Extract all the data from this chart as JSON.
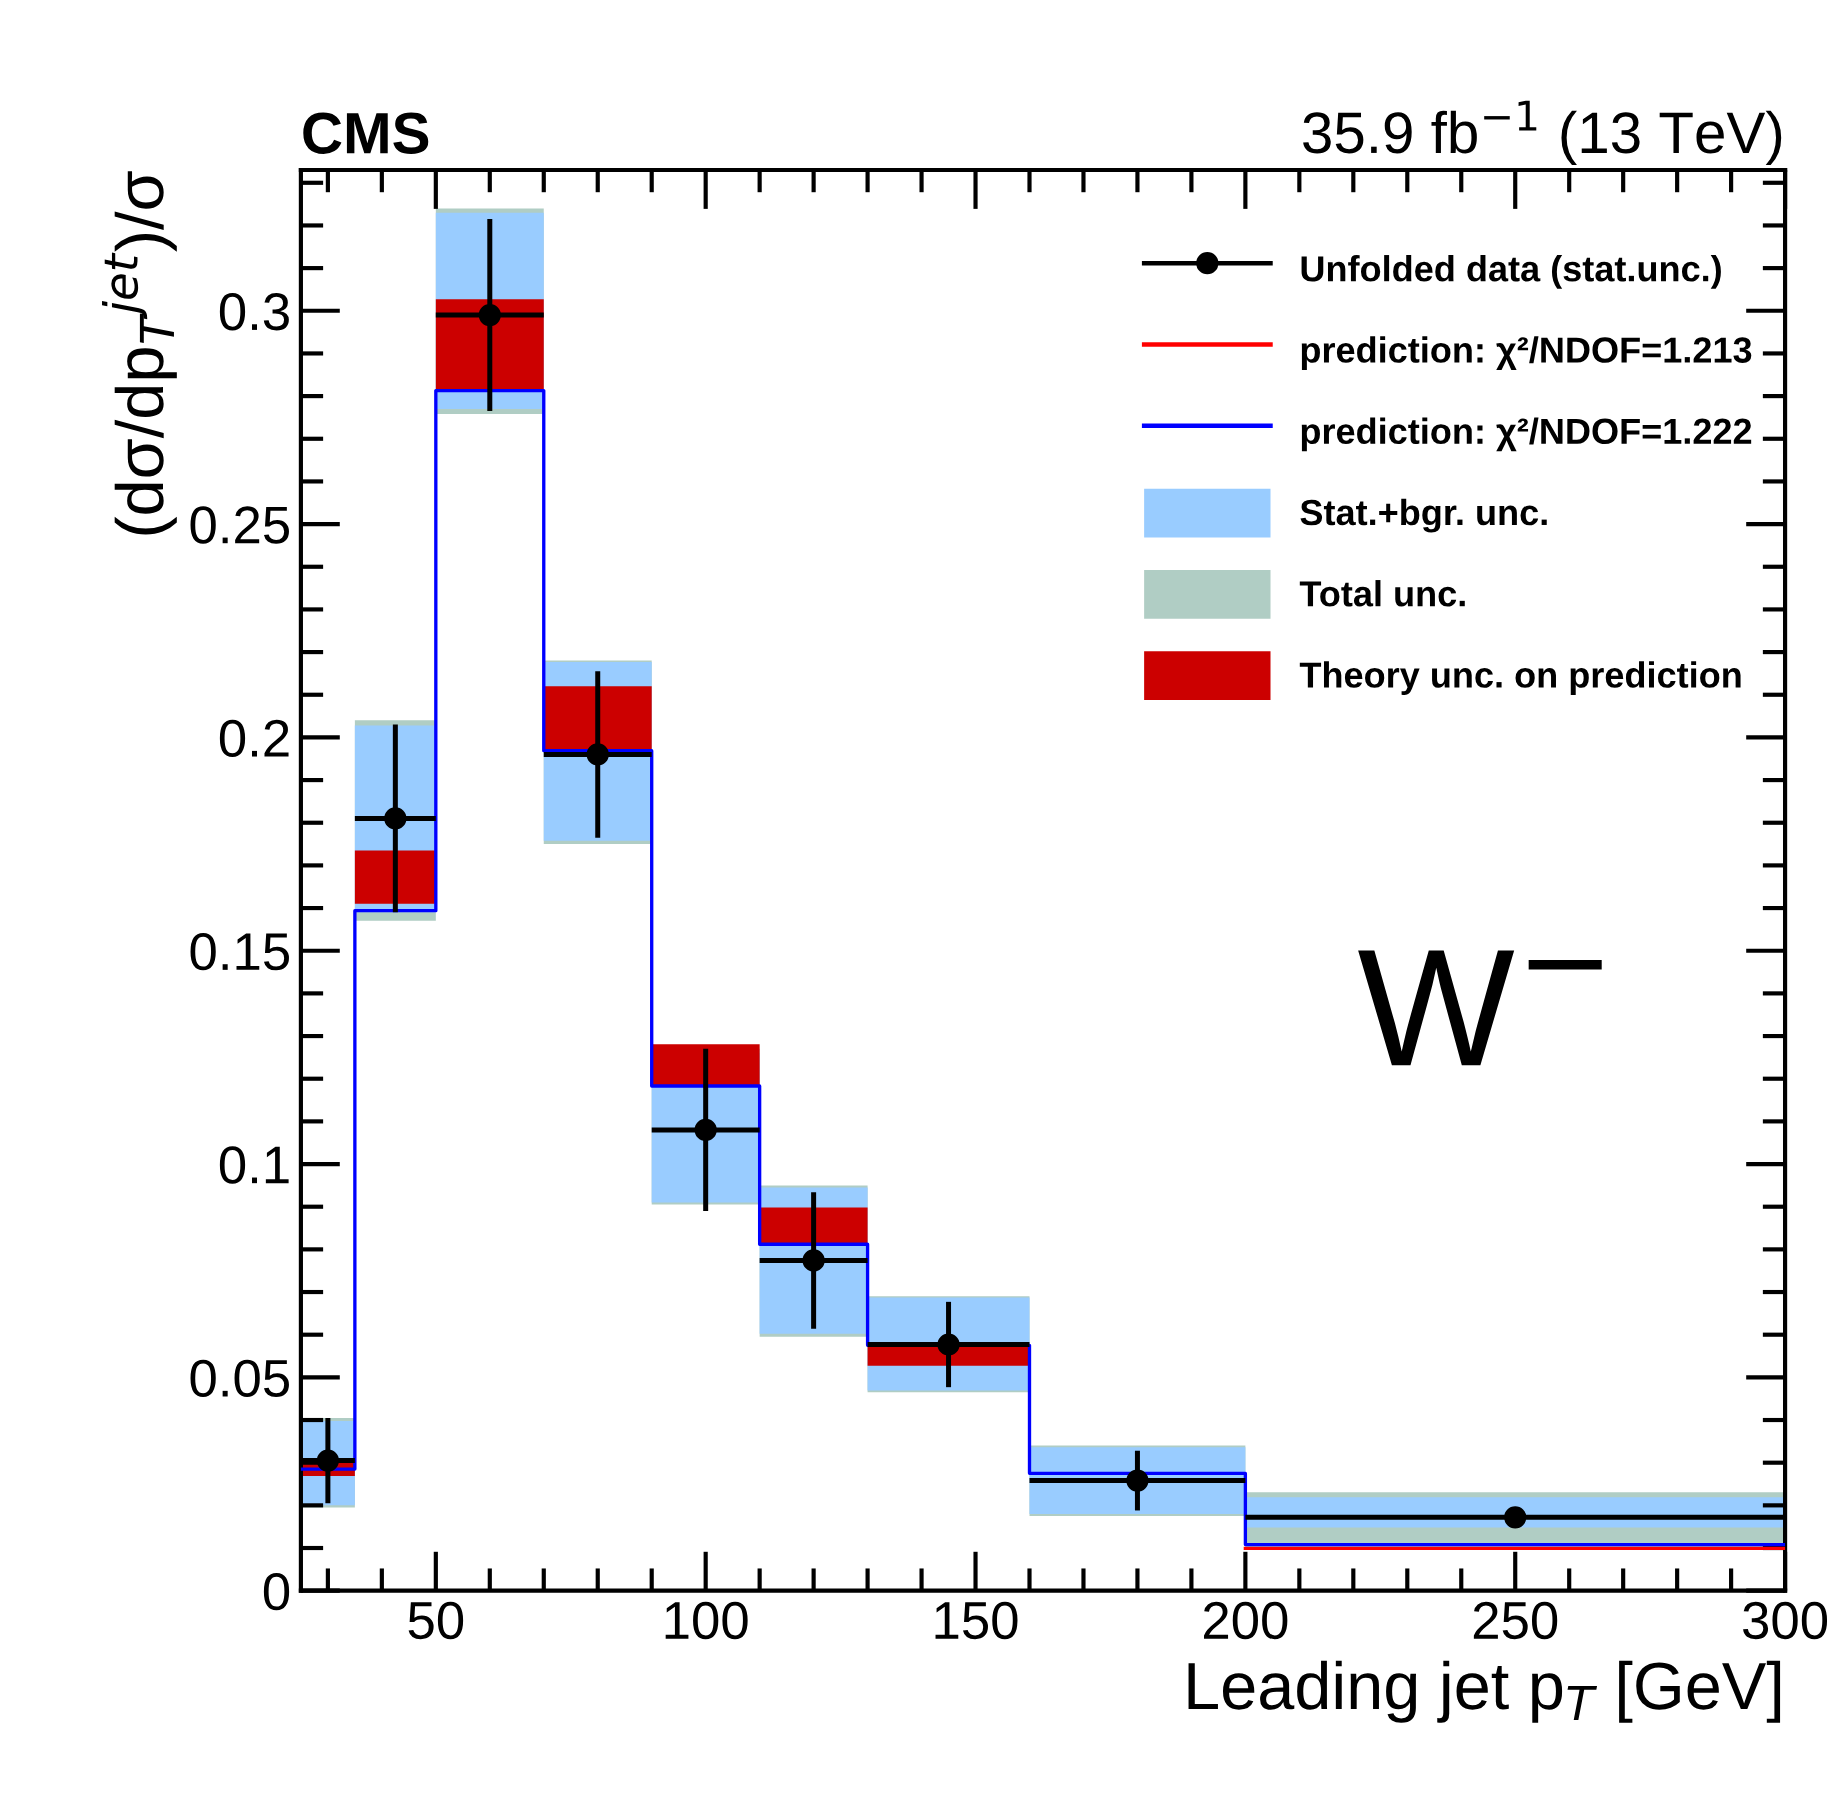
{
  "chart_data": {
    "type": "step",
    "title": "CMS",
    "subtitle": "35.9 fb$^{−1}$ (13 TeV)",
    "xlabel": "Leading jet p$_{T}$ [GeV]",
    "ylabel": "(dσ/dp$_{T}$$^{jet}$)/σ",
    "annotations": [
      "W$^{−}$"
    ],
    "x": [
      25,
      35,
      50,
      70,
      90,
      110,
      130,
      160,
      200,
      300
    ],
    "xlim": [
      25,
      300
    ],
    "xticks": [
      50,
      100,
      150,
      200,
      250,
      300
    ],
    "ylim": [
      0,
      0.333
    ],
    "yticks": [
      0,
      0.05,
      0.1,
      0.15,
      0.2,
      0.25,
      0.3
    ],
    "legend": "top right",
    "grid": false,
    "series": [
      {
        "name": "Unfolded data (stat.unc.)",
        "type": "scatter",
        "marker": "circle",
        "color": "#000000",
        "x": [
          30,
          42.5,
          60,
          80,
          100,
          120,
          145,
          180,
          250
        ],
        "values": [
          0.0305,
          0.181,
          0.299,
          0.196,
          0.108,
          0.0774,
          0.0577,
          0.0258,
          0.0172
        ],
        "errors": [
          0.01,
          0.022,
          0.0225,
          0.0195,
          0.019,
          0.016,
          0.01,
          0.007,
          0.002
        ],
        "xerrors": [
          [
            25,
            35
          ],
          [
            35,
            50
          ],
          [
            50,
            70
          ],
          [
            70,
            90
          ],
          [
            90,
            110
          ],
          [
            110,
            130
          ],
          [
            130,
            160
          ],
          [
            160,
            200
          ],
          [
            200,
            300
          ]
        ]
      },
      {
        "name": "prediction: χ²/NDOF=1.213",
        "type": "step",
        "color": "#ff0000",
        "values": [
          null,
          null,
          null,
          null,
          null,
          null,
          null,
          null,
          0.0099,
          0.0099
        ]
      },
      {
        "name": "prediction: χ²/NDOF=1.222",
        "type": "step",
        "color": "#0000ff",
        "values": [
          0.0285,
          0.1594,
          0.2813,
          0.1969,
          0.1183,
          0.0812,
          0.0575,
          0.0275,
          0.0108,
          0.0108
        ]
      },
      {
        "name": "Stat.+bgr. unc.",
        "type": "area",
        "color": "#99ccff",
        "values": [
          null,
          null,
          null,
          null,
          null,
          null,
          null,
          null,
          null,
          null
        ],
        "upper": [
          0.0398,
          0.2028,
          0.323,
          0.2177,
          0.126,
          0.0945,
          0.0687,
          0.0336,
          0.0219,
          0.0219
        ],
        "lower": [
          0.02,
          0.159,
          0.277,
          0.1758,
          0.091,
          0.0602,
          0.0469,
          0.018,
          0.0148,
          0.0148
        ]
      },
      {
        "name": "Total unc.",
        "type": "area",
        "color": "#b0cdc4",
        "values": [
          null,
          null,
          null,
          null,
          null,
          null,
          null,
          null,
          null,
          null
        ],
        "upper": [
          0.0405,
          0.204,
          0.324,
          0.218,
          0.127,
          0.095,
          0.069,
          0.034,
          0.0231,
          0.0231
        ],
        "lower": [
          0.0195,
          0.157,
          0.2758,
          0.175,
          0.0905,
          0.0595,
          0.0465,
          0.0175,
          0.0102,
          0.0102
        ]
      },
      {
        "name": "Theory unc. on prediction",
        "type": "area",
        "color": "#cc0000",
        "values": [
          null,
          null,
          null,
          null,
          null,
          null,
          null,
          null,
          null,
          null
        ],
        "upper": [
          0.0305,
          0.1735,
          0.3027,
          0.212,
          0.1281,
          0.0898,
          0.0578,
          0.0313,
          null,
          null
        ],
        "lower": [
          0.0269,
          0.161,
          0.2813,
          0.1969,
          0.1183,
          0.0813,
          0.0527,
          0.0281,
          null,
          null
        ]
      }
    ]
  }
}
